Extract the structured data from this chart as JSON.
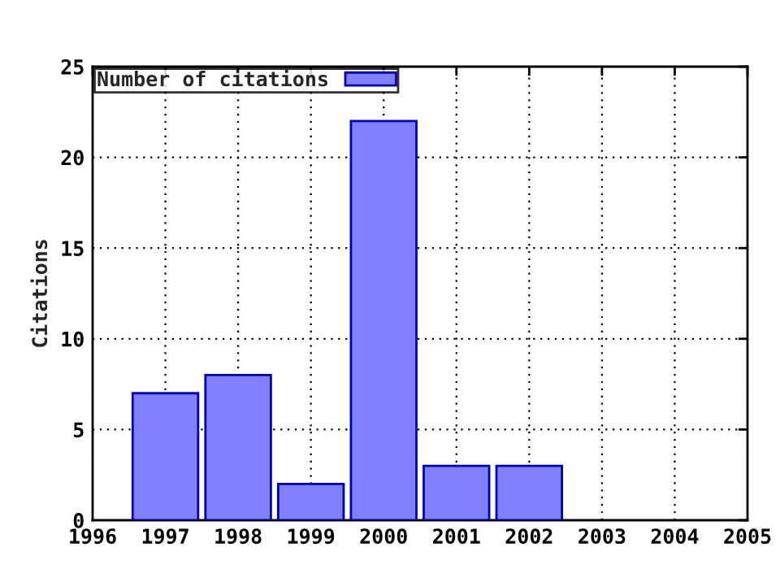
{
  "chart_data": {
    "type": "bar",
    "ylabel": "Citations",
    "x": [
      1997,
      1998,
      1999,
      2000,
      2001,
      2002
    ],
    "series": [
      {
        "name": "Number of citations",
        "color": "#8080ff",
        "values": [
          7,
          8,
          2,
          22,
          3,
          3
        ]
      }
    ],
    "xlim": [
      1996,
      2005
    ],
    "xticks": [
      1996,
      1997,
      1998,
      1999,
      2000,
      2001,
      2002,
      2003,
      2004,
      2005
    ],
    "ylim": [
      0,
      25
    ],
    "yticks": [
      0,
      5,
      10,
      15,
      20,
      25
    ],
    "grid": true,
    "legend": "top left"
  }
}
